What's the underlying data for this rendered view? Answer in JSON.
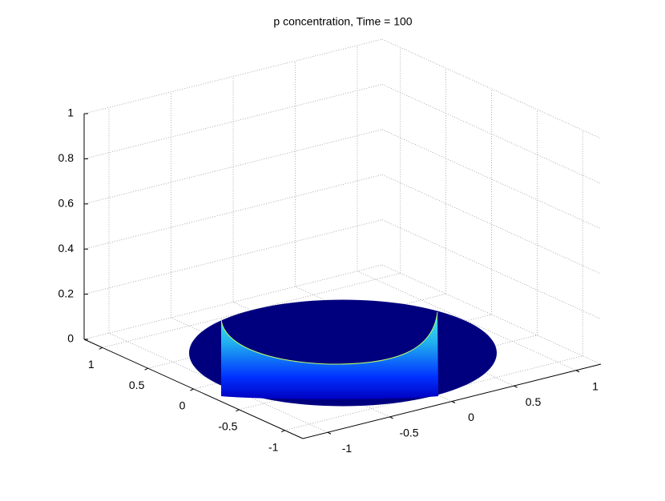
{
  "chart_data": {
    "type": "surface3d",
    "title": "p concentration, Time = 100",
    "xlim": [
      -1.2,
      1.2
    ],
    "xticks": [
      -1,
      -0.5,
      0,
      0.5,
      1
    ],
    "ylim": [
      -1.2,
      1.2
    ],
    "yticks": [
      -1,
      -0.5,
      0,
      0.5,
      1
    ],
    "zlim": [
      0,
      1
    ],
    "zticks": [
      0,
      0.2,
      0.4,
      0.6,
      0.8,
      1
    ],
    "grid": true
  }
}
